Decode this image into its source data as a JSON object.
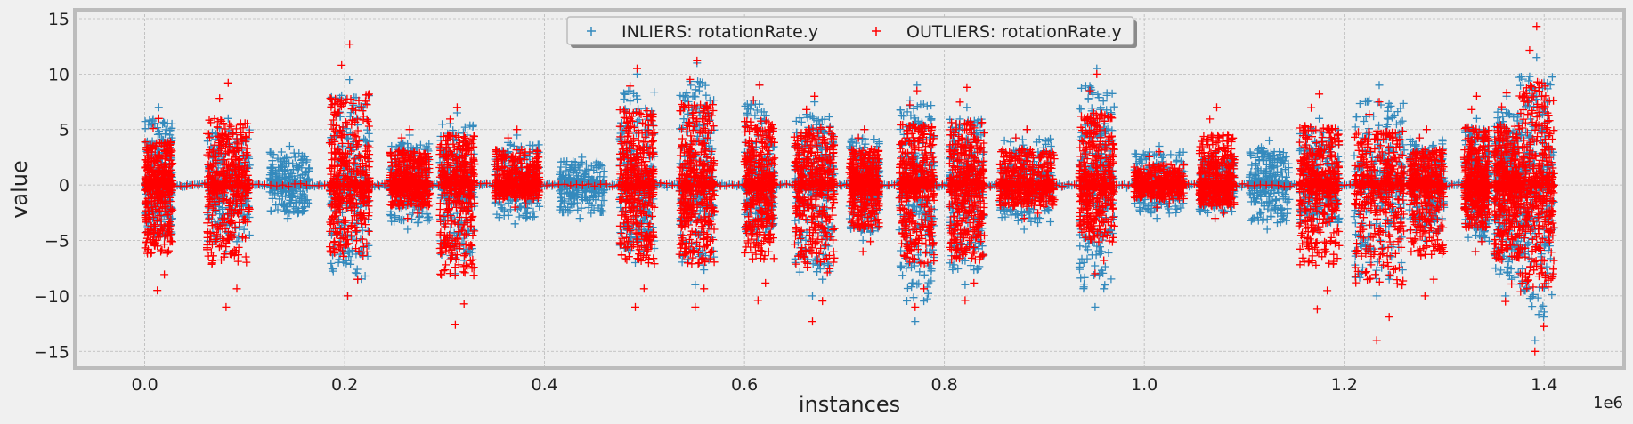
{
  "chart_data": {
    "type": "scatter",
    "title": "",
    "xlabel": "instances",
    "ylabel": "value",
    "x_offset_label": "1e6",
    "xlim": [
      -70000,
      1480000
    ],
    "ylim": [
      -16.5,
      15.8
    ],
    "x_ticks": [
      0,
      200000,
      400000,
      600000,
      800000,
      1000000,
      1200000,
      1400000
    ],
    "x_tick_labels": [
      "0.0",
      "0.2",
      "0.4",
      "0.6",
      "0.8",
      "1.0",
      "1.2",
      "1.4"
    ],
    "y_ticks": [
      -15,
      -10,
      -5,
      0,
      5,
      10,
      15
    ],
    "y_tick_labels": [
      "−15",
      "−10",
      "−5",
      "0",
      "5",
      "10",
      "15"
    ],
    "grid": true,
    "legend_position": "top-center",
    "marker": "+",
    "series": [
      {
        "name": "INLIERS: rotationRate.y",
        "color": "#348abd",
        "bursts": [
          {
            "x": [
              0,
              28000
            ],
            "y": [
              -5.5,
              7
            ]
          },
          {
            "x": [
              62000,
              105000
            ],
            "y": [
              -6,
              6
            ]
          },
          {
            "x": [
              125000,
              165000
            ],
            "y": [
              -3,
              3.5
            ]
          },
          {
            "x": [
              185000,
              225000
            ],
            "y": [
              -10,
              9.5
            ]
          },
          {
            "x": [
              245000,
              285000
            ],
            "y": [
              -4,
              4.5
            ]
          },
          {
            "x": [
              295000,
              330000
            ],
            "y": [
              -8,
              6.5
            ]
          },
          {
            "x": [
              350000,
              395000
            ],
            "y": [
              -3.5,
              4.5
            ]
          },
          {
            "x": [
              415000,
              460000
            ],
            "y": [
              -3,
              2.5
            ]
          },
          {
            "x": [
              475000,
              510000
            ],
            "y": [
              -7,
              10
            ]
          },
          {
            "x": [
              535000,
              570000
            ],
            "y": [
              -9,
              11
            ]
          },
          {
            "x": [
              600000,
              630000
            ],
            "y": [
              -5,
              9
            ]
          },
          {
            "x": [
              650000,
              690000
            ],
            "y": [
              -10,
              7.5
            ]
          },
          {
            "x": [
              705000,
              735000
            ],
            "y": [
              -5,
              5
            ]
          },
          {
            "x": [
              755000,
              790000
            ],
            "y": [
              -12.3,
              9
            ]
          },
          {
            "x": [
              805000,
              840000
            ],
            "y": [
              -9,
              7
            ]
          },
          {
            "x": [
              855000,
              910000
            ],
            "y": [
              -4,
              5
            ]
          },
          {
            "x": [
              935000,
              970000
            ],
            "y": [
              -11,
              10.5
            ]
          },
          {
            "x": [
              990000,
              1040000
            ],
            "y": [
              -3,
              3.5
            ]
          },
          {
            "x": [
              1055000,
              1090000
            ],
            "y": [
              -3,
              3
            ]
          },
          {
            "x": [
              1105000,
              1145000
            ],
            "y": [
              -4,
              4
            ]
          },
          {
            "x": [
              1155000,
              1195000
            ],
            "y": [
              -4,
              6
            ]
          },
          {
            "x": [
              1210000,
              1260000
            ],
            "y": [
              -10,
              9
            ]
          },
          {
            "x": [
              1265000,
              1300000
            ],
            "y": [
              -5,
              5
            ]
          },
          {
            "x": [
              1320000,
              1345000
            ],
            "y": [
              -6,
              6
            ]
          },
          {
            "x": [
              1350000,
              1375000
            ],
            "y": [
              -10,
              8
            ]
          },
          {
            "x": [
              1375000,
              1410000
            ],
            "y": [
              -14,
              11.5
            ]
          }
        ]
      },
      {
        "name": "OUTLIERS: rotationRate.y",
        "color": "#ff0000",
        "bursts": [
          {
            "x": [
              0,
              28000
            ],
            "y": [
              -9.5,
              6
            ]
          },
          {
            "x": [
              62000,
              105000
            ],
            "y": [
              -11,
              9.2
            ]
          },
          {
            "x": [
              185000,
              225000
            ],
            "y": [
              -10,
              12.7
            ]
          },
          {
            "x": [
              245000,
              285000
            ],
            "y": [
              -3,
              5
            ]
          },
          {
            "x": [
              295000,
              330000
            ],
            "y": [
              -12.6,
              7
            ]
          },
          {
            "x": [
              350000,
              395000
            ],
            "y": [
              -2,
              5
            ]
          },
          {
            "x": [
              475000,
              510000
            ],
            "y": [
              -11,
              10.5
            ]
          },
          {
            "x": [
              535000,
              570000
            ],
            "y": [
              -11,
              11.2
            ]
          },
          {
            "x": [
              600000,
              630000
            ],
            "y": [
              -10.4,
              9
            ]
          },
          {
            "x": [
              650000,
              690000
            ],
            "y": [
              -12.3,
              8
            ]
          },
          {
            "x": [
              705000,
              735000
            ],
            "y": [
              -6,
              5
            ]
          },
          {
            "x": [
              755000,
              790000
            ],
            "y": [
              -11,
              8.5
            ]
          },
          {
            "x": [
              805000,
              840000
            ],
            "y": [
              -10.4,
              8.8
            ]
          },
          {
            "x": [
              855000,
              910000
            ],
            "y": [
              -3,
              5
            ]
          },
          {
            "x": [
              935000,
              970000
            ],
            "y": [
              -8,
              10
            ]
          },
          {
            "x": [
              990000,
              1040000
            ],
            "y": [
              -2,
              3
            ]
          },
          {
            "x": [
              1055000,
              1090000
            ],
            "y": [
              -3,
              7
            ]
          },
          {
            "x": [
              1155000,
              1195000
            ],
            "y": [
              -11.2,
              8.2
            ]
          },
          {
            "x": [
              1210000,
              1260000
            ],
            "y": [
              -14,
              7.5
            ]
          },
          {
            "x": [
              1265000,
              1300000
            ],
            "y": [
              -10,
              5
            ]
          },
          {
            "x": [
              1320000,
              1345000
            ],
            "y": [
              -6,
              8
            ]
          },
          {
            "x": [
              1350000,
              1375000
            ],
            "y": [
              -10.5,
              8.3
            ]
          },
          {
            "x": [
              1375000,
              1410000
            ],
            "y": [
              -15,
              14.3
            ]
          }
        ]
      }
    ]
  }
}
